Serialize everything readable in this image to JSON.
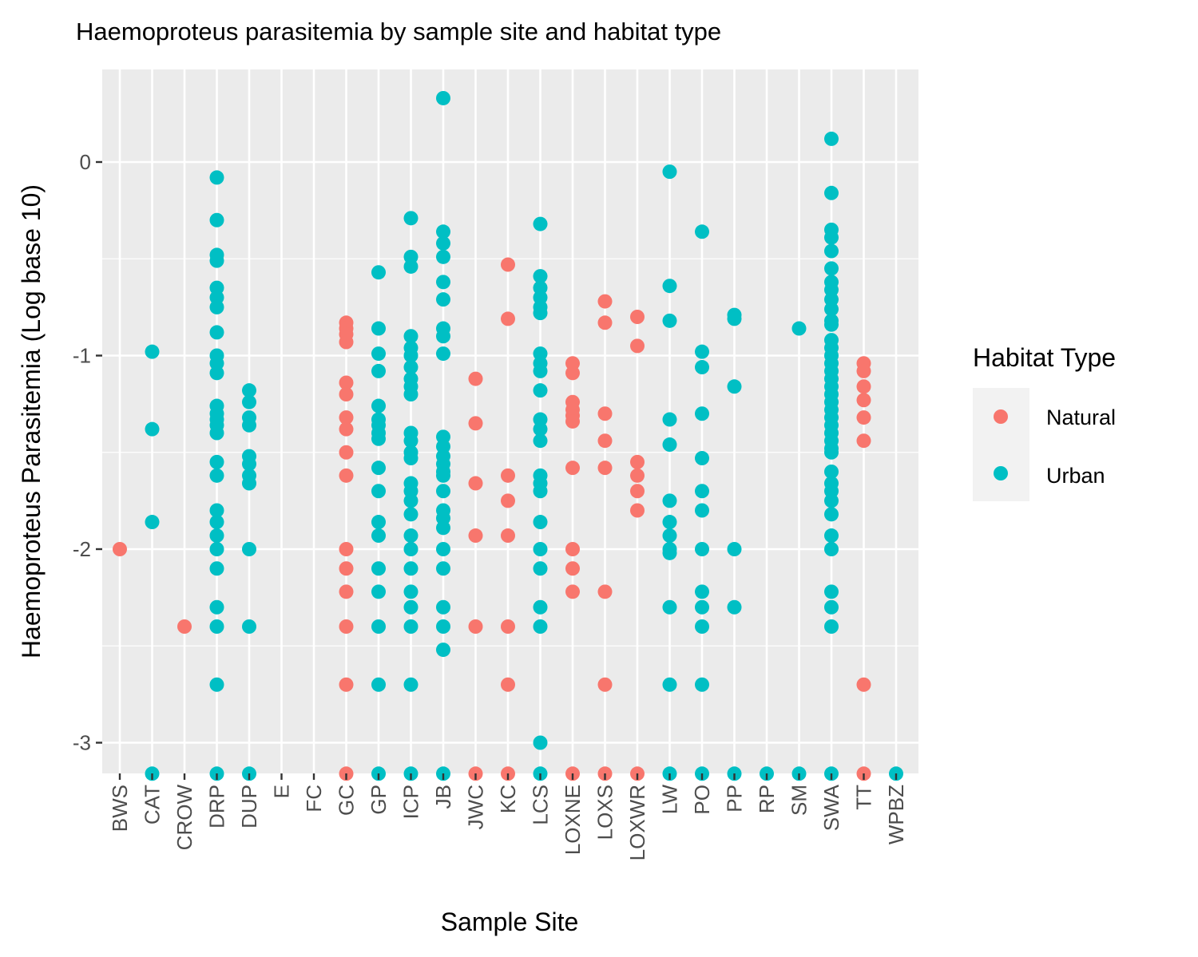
{
  "chart_data": {
    "type": "scatter",
    "title": "Haemoproteus parasitemia by sample site and habitat type",
    "xlabel": "Sample Site",
    "ylabel": "Haemoproteus Parasitemia (Log base 10)",
    "ylim": [
      -3.16,
      0.38
    ],
    "yticks": [
      0,
      -1,
      -2,
      -3
    ],
    "ytick_labels": [
      "0",
      "-1",
      "-2",
      "-3"
    ],
    "grid": true,
    "categories": [
      "BWS",
      "CAT",
      "CROW",
      "DRP",
      "DUP",
      "E",
      "FC",
      "GC",
      "GP",
      "ICP",
      "JB",
      "JWC",
      "KC",
      "LCS",
      "LOXNE",
      "LOXS",
      "LOXWR",
      "LW",
      "PO",
      "PP",
      "RP",
      "SM",
      "SWA",
      "TT",
      "WPBZ"
    ],
    "legend": {
      "title": "Habitat Type",
      "position": "right",
      "entries": [
        {
          "label": "Natural",
          "color": "#F8766D"
        },
        {
          "label": "Urban",
          "color": "#00BFC4"
        }
      ]
    },
    "series": [
      {
        "name": "Natural",
        "color": "#F8766D",
        "points": [
          [
            "BWS",
            -2.0
          ],
          [
            "CROW",
            -2.4
          ],
          [
            "GC",
            -0.83
          ],
          [
            "GC",
            -0.86
          ],
          [
            "GC",
            -0.89
          ],
          [
            "GC",
            -0.93
          ],
          [
            "GC",
            -1.14
          ],
          [
            "GC",
            -1.2
          ],
          [
            "GC",
            -1.32
          ],
          [
            "GC",
            -1.38
          ],
          [
            "GC",
            -1.5
          ],
          [
            "GC",
            -1.62
          ],
          [
            "GC",
            -2.0
          ],
          [
            "GC",
            -2.1
          ],
          [
            "GC",
            -2.22
          ],
          [
            "GC",
            -2.4
          ],
          [
            "GC",
            -2.7
          ],
          [
            "GC",
            -3.16
          ],
          [
            "JWC",
            -1.12
          ],
          [
            "JWC",
            -1.35
          ],
          [
            "JWC",
            -1.66
          ],
          [
            "JWC",
            -1.93
          ],
          [
            "JWC",
            -2.4
          ],
          [
            "JWC",
            -3.16
          ],
          [
            "KC",
            -0.53
          ],
          [
            "KC",
            -0.81
          ],
          [
            "KC",
            -1.62
          ],
          [
            "KC",
            -1.75
          ],
          [
            "KC",
            -1.93
          ],
          [
            "KC",
            -2.4
          ],
          [
            "KC",
            -2.7
          ],
          [
            "KC",
            -3.16
          ],
          [
            "LOXNE",
            -1.04
          ],
          [
            "LOXNE",
            -1.09
          ],
          [
            "LOXNE",
            -1.24
          ],
          [
            "LOXNE",
            -1.28
          ],
          [
            "LOXNE",
            -1.31
          ],
          [
            "LOXNE",
            -1.34
          ],
          [
            "LOXNE",
            -1.58
          ],
          [
            "LOXNE",
            -2.0
          ],
          [
            "LOXNE",
            -2.1
          ],
          [
            "LOXNE",
            -2.22
          ],
          [
            "LOXNE",
            -3.16
          ],
          [
            "LOXS",
            -0.72
          ],
          [
            "LOXS",
            -0.83
          ],
          [
            "LOXS",
            -1.3
          ],
          [
            "LOXS",
            -1.44
          ],
          [
            "LOXS",
            -1.58
          ],
          [
            "LOXS",
            -2.22
          ],
          [
            "LOXS",
            -2.7
          ],
          [
            "LOXS",
            -3.16
          ],
          [
            "LOXWR",
            -0.8
          ],
          [
            "LOXWR",
            -0.95
          ],
          [
            "LOXWR",
            -1.55
          ],
          [
            "LOXWR",
            -1.62
          ],
          [
            "LOXWR",
            -1.7
          ],
          [
            "LOXWR",
            -1.8
          ],
          [
            "LOXWR",
            -3.16
          ],
          [
            "TT",
            -1.04
          ],
          [
            "TT",
            -1.08
          ],
          [
            "TT",
            -1.16
          ],
          [
            "TT",
            -1.23
          ],
          [
            "TT",
            -1.32
          ],
          [
            "TT",
            -1.44
          ],
          [
            "TT",
            -2.7
          ],
          [
            "TT",
            -3.16
          ]
        ]
      },
      {
        "name": "Urban",
        "color": "#00BFC4",
        "points": [
          [
            "CAT",
            -0.98
          ],
          [
            "CAT",
            -1.38
          ],
          [
            "CAT",
            -1.86
          ],
          [
            "CAT",
            -3.16
          ],
          [
            "DRP",
            -0.08
          ],
          [
            "DRP",
            -0.3
          ],
          [
            "DRP",
            -0.48
          ],
          [
            "DRP",
            -0.51
          ],
          [
            "DRP",
            -0.65
          ],
          [
            "DRP",
            -0.7
          ],
          [
            "DRP",
            -0.75
          ],
          [
            "DRP",
            -0.88
          ],
          [
            "DRP",
            -1.0
          ],
          [
            "DRP",
            -1.04
          ],
          [
            "DRP",
            -1.09
          ],
          [
            "DRP",
            -1.26
          ],
          [
            "DRP",
            -1.3
          ],
          [
            "DRP",
            -1.33
          ],
          [
            "DRP",
            -1.36
          ],
          [
            "DRP",
            -1.4
          ],
          [
            "DRP",
            -1.55
          ],
          [
            "DRP",
            -1.62
          ],
          [
            "DRP",
            -1.8
          ],
          [
            "DRP",
            -1.86
          ],
          [
            "DRP",
            -1.93
          ],
          [
            "DRP",
            -2.0
          ],
          [
            "DRP",
            -2.1
          ],
          [
            "DRP",
            -2.3
          ],
          [
            "DRP",
            -2.4
          ],
          [
            "DRP",
            -2.7
          ],
          [
            "DRP",
            -3.16
          ],
          [
            "DUP",
            -1.18
          ],
          [
            "DUP",
            -1.24
          ],
          [
            "DUP",
            -1.32
          ],
          [
            "DUP",
            -1.36
          ],
          [
            "DUP",
            -1.52
          ],
          [
            "DUP",
            -1.56
          ],
          [
            "DUP",
            -1.62
          ],
          [
            "DUP",
            -1.66
          ],
          [
            "DUP",
            -2.0
          ],
          [
            "DUP",
            -2.4
          ],
          [
            "DUP",
            -3.16
          ],
          [
            "GP",
            -0.57
          ],
          [
            "GP",
            -0.86
          ],
          [
            "GP",
            -0.99
          ],
          [
            "GP",
            -1.08
          ],
          [
            "GP",
            -1.26
          ],
          [
            "GP",
            -1.33
          ],
          [
            "GP",
            -1.36
          ],
          [
            "GP",
            -1.4
          ],
          [
            "GP",
            -1.43
          ],
          [
            "GP",
            -1.58
          ],
          [
            "GP",
            -1.7
          ],
          [
            "GP",
            -1.86
          ],
          [
            "GP",
            -1.93
          ],
          [
            "GP",
            -2.1
          ],
          [
            "GP",
            -2.22
          ],
          [
            "GP",
            -2.4
          ],
          [
            "GP",
            -2.7
          ],
          [
            "GP",
            -3.16
          ],
          [
            "ICP",
            -0.29
          ],
          [
            "ICP",
            -0.49
          ],
          [
            "ICP",
            -0.54
          ],
          [
            "ICP",
            -0.9
          ],
          [
            "ICP",
            -0.96
          ],
          [
            "ICP",
            -1.0
          ],
          [
            "ICP",
            -1.06
          ],
          [
            "ICP",
            -1.12
          ],
          [
            "ICP",
            -1.16
          ],
          [
            "ICP",
            -1.2
          ],
          [
            "ICP",
            -1.4
          ],
          [
            "ICP",
            -1.44
          ],
          [
            "ICP",
            -1.5
          ],
          [
            "ICP",
            -1.53
          ],
          [
            "ICP",
            -1.66
          ],
          [
            "ICP",
            -1.7
          ],
          [
            "ICP",
            -1.75
          ],
          [
            "ICP",
            -1.82
          ],
          [
            "ICP",
            -1.93
          ],
          [
            "ICP",
            -2.0
          ],
          [
            "ICP",
            -2.1
          ],
          [
            "ICP",
            -2.22
          ],
          [
            "ICP",
            -2.3
          ],
          [
            "ICP",
            -2.4
          ],
          [
            "ICP",
            -2.7
          ],
          [
            "ICP",
            -3.16
          ],
          [
            "JB",
            0.33
          ],
          [
            "JB",
            -0.36
          ],
          [
            "JB",
            -0.42
          ],
          [
            "JB",
            -0.49
          ],
          [
            "JB",
            -0.62
          ],
          [
            "JB",
            -0.71
          ],
          [
            "JB",
            -0.86
          ],
          [
            "JB",
            -0.9
          ],
          [
            "JB",
            -0.99
          ],
          [
            "JB",
            -1.42
          ],
          [
            "JB",
            -1.47
          ],
          [
            "JB",
            -1.52
          ],
          [
            "JB",
            -1.56
          ],
          [
            "JB",
            -1.6
          ],
          [
            "JB",
            -1.62
          ],
          [
            "JB",
            -1.7
          ],
          [
            "JB",
            -1.8
          ],
          [
            "JB",
            -1.84
          ],
          [
            "JB",
            -1.89
          ],
          [
            "JB",
            -2.0
          ],
          [
            "JB",
            -2.1
          ],
          [
            "JB",
            -2.3
          ],
          [
            "JB",
            -2.4
          ],
          [
            "JB",
            -2.52
          ],
          [
            "JB",
            -3.16
          ],
          [
            "LCS",
            -0.32
          ],
          [
            "LCS",
            -0.59
          ],
          [
            "LCS",
            -0.65
          ],
          [
            "LCS",
            -0.7
          ],
          [
            "LCS",
            -0.75
          ],
          [
            "LCS",
            -0.78
          ],
          [
            "LCS",
            -0.99
          ],
          [
            "LCS",
            -1.04
          ],
          [
            "LCS",
            -1.08
          ],
          [
            "LCS",
            -1.18
          ],
          [
            "LCS",
            -1.33
          ],
          [
            "LCS",
            -1.38
          ],
          [
            "LCS",
            -1.44
          ],
          [
            "LCS",
            -1.62
          ],
          [
            "LCS",
            -1.66
          ],
          [
            "LCS",
            -1.7
          ],
          [
            "LCS",
            -1.86
          ],
          [
            "LCS",
            -2.0
          ],
          [
            "LCS",
            -2.1
          ],
          [
            "LCS",
            -2.3
          ],
          [
            "LCS",
            -2.4
          ],
          [
            "LCS",
            -3.0
          ],
          [
            "LCS",
            -3.16
          ],
          [
            "LW",
            -0.05
          ],
          [
            "LW",
            -0.64
          ],
          [
            "LW",
            -0.82
          ],
          [
            "LW",
            -1.33
          ],
          [
            "LW",
            -1.46
          ],
          [
            "LW",
            -1.75
          ],
          [
            "LW",
            -1.86
          ],
          [
            "LW",
            -1.93
          ],
          [
            "LW",
            -2.0
          ],
          [
            "LW",
            -2.02
          ],
          [
            "LW",
            -2.3
          ],
          [
            "LW",
            -2.7
          ],
          [
            "LW",
            -3.16
          ],
          [
            "PO",
            -0.36
          ],
          [
            "PO",
            -0.98
          ],
          [
            "PO",
            -1.06
          ],
          [
            "PO",
            -1.3
          ],
          [
            "PO",
            -1.53
          ],
          [
            "PO",
            -1.7
          ],
          [
            "PO",
            -1.8
          ],
          [
            "PO",
            -2.0
          ],
          [
            "PO",
            -2.22
          ],
          [
            "PO",
            -2.3
          ],
          [
            "PO",
            -2.4
          ],
          [
            "PO",
            -2.7
          ],
          [
            "PO",
            -3.16
          ],
          [
            "PP",
            -0.79
          ],
          [
            "PP",
            -0.81
          ],
          [
            "PP",
            -1.16
          ],
          [
            "PP",
            -2.0
          ],
          [
            "PP",
            -2.3
          ],
          [
            "PP",
            -3.16
          ],
          [
            "RP",
            -3.16
          ],
          [
            "SM",
            -0.86
          ],
          [
            "SM",
            -3.16
          ],
          [
            "SWA",
            0.12
          ],
          [
            "SWA",
            -0.16
          ],
          [
            "SWA",
            -0.35
          ],
          [
            "SWA",
            -0.39
          ],
          [
            "SWA",
            -0.46
          ],
          [
            "SWA",
            -0.55
          ],
          [
            "SWA",
            -0.62
          ],
          [
            "SWA",
            -0.66
          ],
          [
            "SWA",
            -0.71
          ],
          [
            "SWA",
            -0.76
          ],
          [
            "SWA",
            -0.82
          ],
          [
            "SWA",
            -0.84
          ],
          [
            "SWA",
            -0.92
          ],
          [
            "SWA",
            -0.96
          ],
          [
            "SWA",
            -1.0
          ],
          [
            "SWA",
            -1.04
          ],
          [
            "SWA",
            -1.08
          ],
          [
            "SWA",
            -1.12
          ],
          [
            "SWA",
            -1.16
          ],
          [
            "SWA",
            -1.2
          ],
          [
            "SWA",
            -1.24
          ],
          [
            "SWA",
            -1.28
          ],
          [
            "SWA",
            -1.32
          ],
          [
            "SWA",
            -1.36
          ],
          [
            "SWA",
            -1.4
          ],
          [
            "SWA",
            -1.44
          ],
          [
            "SWA",
            -1.48
          ],
          [
            "SWA",
            -1.5
          ],
          [
            "SWA",
            -1.6
          ],
          [
            "SWA",
            -1.66
          ],
          [
            "SWA",
            -1.7
          ],
          [
            "SWA",
            -1.75
          ],
          [
            "SWA",
            -1.82
          ],
          [
            "SWA",
            -1.93
          ],
          [
            "SWA",
            -2.0
          ],
          [
            "SWA",
            -2.22
          ],
          [
            "SWA",
            -2.3
          ],
          [
            "SWA",
            -2.4
          ],
          [
            "SWA",
            -3.16
          ],
          [
            "WPBZ",
            -3.16
          ]
        ]
      }
    ]
  }
}
